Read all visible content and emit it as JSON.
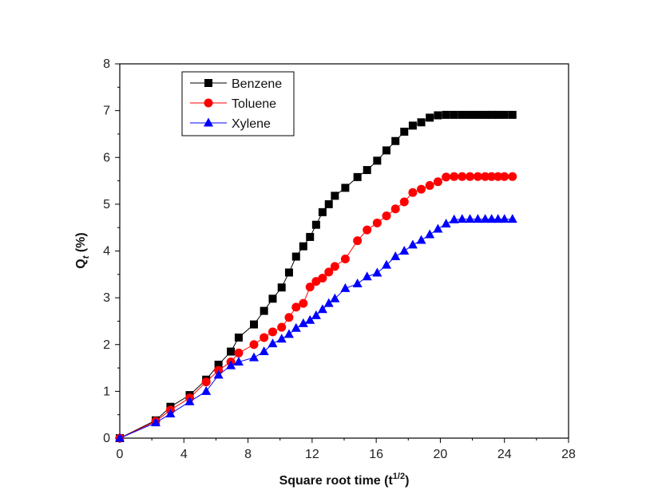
{
  "chart_data": {
    "type": "line",
    "title": "",
    "xlabel": "Square root time (t",
    "xlabel_sup": "1/2",
    "xlabel_end": ")",
    "ylabel": "Q",
    "ylabel_sub": "t",
    "ylabel_end": " (%)",
    "xlim": [
      0,
      28
    ],
    "ylim": [
      0,
      8
    ],
    "xticks": [
      "0",
      "4",
      "8",
      "12",
      "16",
      "20",
      "24",
      "28"
    ],
    "yticks": [
      "0",
      "1",
      "2",
      "3",
      "4",
      "5",
      "6",
      "7",
      "8"
    ],
    "grid": false,
    "legend": "top-left",
    "series": [
      {
        "name": "Benzene",
        "color": "#000000",
        "marker": "square",
        "x": [
          0,
          2.24,
          3.16,
          4.36,
          5.39,
          6.16,
          6.93,
          7.42,
          8.37,
          9.0,
          9.54,
          10.1,
          10.56,
          11.0,
          11.45,
          11.87,
          12.25,
          12.65,
          13.04,
          13.42,
          14.07,
          14.83,
          15.43,
          16.06,
          16.64,
          17.2,
          17.75,
          18.28,
          18.81,
          19.34,
          19.85,
          20.36,
          20.86,
          21.36,
          21.85,
          22.34,
          22.8,
          23.2,
          23.6,
          24.0,
          24.5
        ],
        "y": [
          0,
          0.38,
          0.67,
          0.92,
          1.25,
          1.57,
          1.85,
          2.15,
          2.43,
          2.72,
          2.98,
          3.22,
          3.54,
          3.88,
          4.1,
          4.3,
          4.56,
          4.83,
          5.0,
          5.18,
          5.35,
          5.58,
          5.73,
          5.93,
          6.15,
          6.35,
          6.55,
          6.68,
          6.75,
          6.85,
          6.9,
          6.91,
          6.91,
          6.91,
          6.91,
          6.91,
          6.91,
          6.91,
          6.91,
          6.91,
          6.91
        ]
      },
      {
        "name": "Toluene",
        "color": "#ff0000",
        "marker": "circle",
        "x": [
          0,
          2.24,
          3.16,
          4.36,
          5.39,
          6.16,
          6.93,
          7.42,
          8.37,
          9.0,
          9.54,
          10.1,
          10.56,
          11.0,
          11.45,
          11.87,
          12.25,
          12.65,
          13.04,
          13.42,
          14.07,
          14.83,
          15.43,
          16.06,
          16.64,
          17.2,
          17.75,
          18.28,
          18.81,
          19.34,
          19.85,
          20.36,
          20.86,
          21.36,
          21.85,
          22.34,
          22.8,
          23.2,
          23.6,
          24.0,
          24.5
        ],
        "y": [
          0,
          0.36,
          0.6,
          0.86,
          1.2,
          1.45,
          1.63,
          1.82,
          2.0,
          2.15,
          2.27,
          2.37,
          2.58,
          2.8,
          2.88,
          3.23,
          3.35,
          3.42,
          3.55,
          3.67,
          3.83,
          4.22,
          4.45,
          4.6,
          4.75,
          4.9,
          5.05,
          5.25,
          5.32,
          5.4,
          5.48,
          5.58,
          5.59,
          5.59,
          5.59,
          5.59,
          5.59,
          5.59,
          5.59,
          5.59,
          5.59
        ]
      },
      {
        "name": "Xylene",
        "color": "#0000ff",
        "marker": "triangle",
        "x": [
          0,
          2.24,
          3.16,
          4.36,
          5.39,
          6.16,
          6.93,
          7.42,
          8.37,
          9.0,
          9.54,
          10.1,
          10.56,
          11.0,
          11.45,
          11.87,
          12.25,
          12.65,
          13.04,
          13.42,
          14.07,
          14.83,
          15.43,
          16.06,
          16.64,
          17.2,
          17.75,
          18.28,
          18.81,
          19.34,
          19.85,
          20.36,
          20.86,
          21.36,
          21.85,
          22.34,
          22.8,
          23.2,
          23.6,
          24.0,
          24.5
        ],
        "y": [
          0,
          0.33,
          0.52,
          0.78,
          1.0,
          1.35,
          1.55,
          1.63,
          1.72,
          1.85,
          2.02,
          2.12,
          2.22,
          2.35,
          2.45,
          2.52,
          2.62,
          2.75,
          2.88,
          2.98,
          3.2,
          3.3,
          3.45,
          3.53,
          3.7,
          3.88,
          4.0,
          4.13,
          4.23,
          4.35,
          4.47,
          4.58,
          4.67,
          4.68,
          4.68,
          4.68,
          4.68,
          4.68,
          4.68,
          4.68,
          4.68
        ]
      }
    ]
  }
}
